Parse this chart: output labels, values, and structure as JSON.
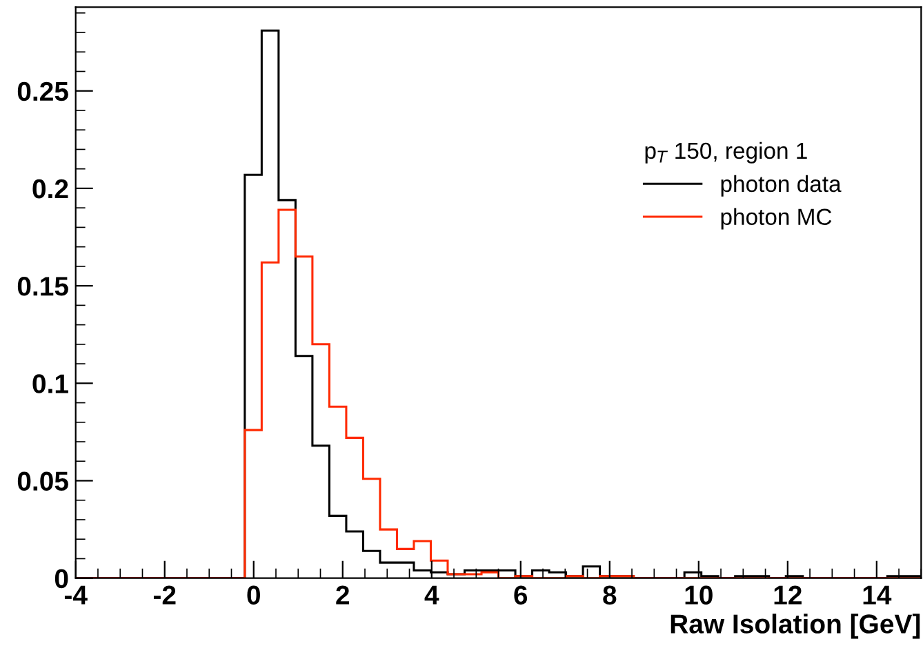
{
  "chart_data": {
    "type": "histogram",
    "xlabel": "Raw Isolation [GeV]",
    "legend_title": "p$_{T}$ 150, region 1",
    "legend": "top right",
    "grid": false,
    "bins": [
      -4,
      -3.62,
      -3.24,
      -2.86,
      -2.48,
      -2.1,
      -1.72,
      -1.34,
      -0.96,
      -0.58,
      -0.2,
      0.18,
      0.56,
      0.94,
      1.32,
      1.7,
      2.08,
      2.46,
      2.84,
      3.22,
      3.6,
      3.98,
      4.36,
      4.74,
      5.12,
      5.5,
      5.88,
      6.26,
      6.64,
      7.02,
      7.4,
      7.78,
      8.16,
      8.54,
      8.92,
      9.3,
      9.68,
      10.06,
      10.44,
      10.82,
      11.2,
      11.58,
      11.96,
      12.34,
      12.72,
      13.1,
      13.48,
      13.86,
      14.24,
      14.62,
      15.0
    ],
    "series": [
      {
        "name": "photon data",
        "color": "#000000",
        "values": [
          0,
          0,
          0,
          0,
          0,
          0,
          0,
          0,
          0,
          0,
          0.207,
          0.281,
          0.194,
          0.114,
          0.068,
          0.032,
          0.024,
          0.014,
          0.008,
          0.008,
          0.004,
          0.003,
          0.002,
          0.004,
          0.004,
          0.004,
          0.001,
          0.004,
          0.003,
          0.001,
          0.006,
          0.001,
          0.001,
          0,
          0,
          0,
          0.003,
          0.001,
          0,
          0.001,
          0.001,
          0,
          0.001,
          0,
          0,
          0,
          0,
          0,
          0.001,
          0.001
        ]
      },
      {
        "name": "photon MC",
        "color": "#ff2a00",
        "values": [
          0,
          0,
          0,
          0,
          0,
          0,
          0,
          0,
          0,
          0,
          0.076,
          0.162,
          0.189,
          0.165,
          0.12,
          0.088,
          0.072,
          0.051,
          0.025,
          0.015,
          0.019,
          0.009,
          0.002,
          0.002,
          0.003,
          0,
          0.001,
          0,
          0,
          0.001,
          0,
          0.001,
          0.001,
          0,
          0,
          0,
          0,
          0,
          0,
          0,
          0,
          0,
          0,
          0,
          0,
          0,
          0,
          0,
          0,
          0
        ]
      }
    ],
    "xlim": [
      -4,
      15
    ],
    "xticks": [
      -4,
      -2,
      0,
      2,
      4,
      6,
      8,
      10,
      12,
      14
    ],
    "ylim": [
      0,
      0.293
    ],
    "yticks": [
      0,
      0.05,
      0.1,
      0.15,
      0.2,
      0.25
    ]
  }
}
